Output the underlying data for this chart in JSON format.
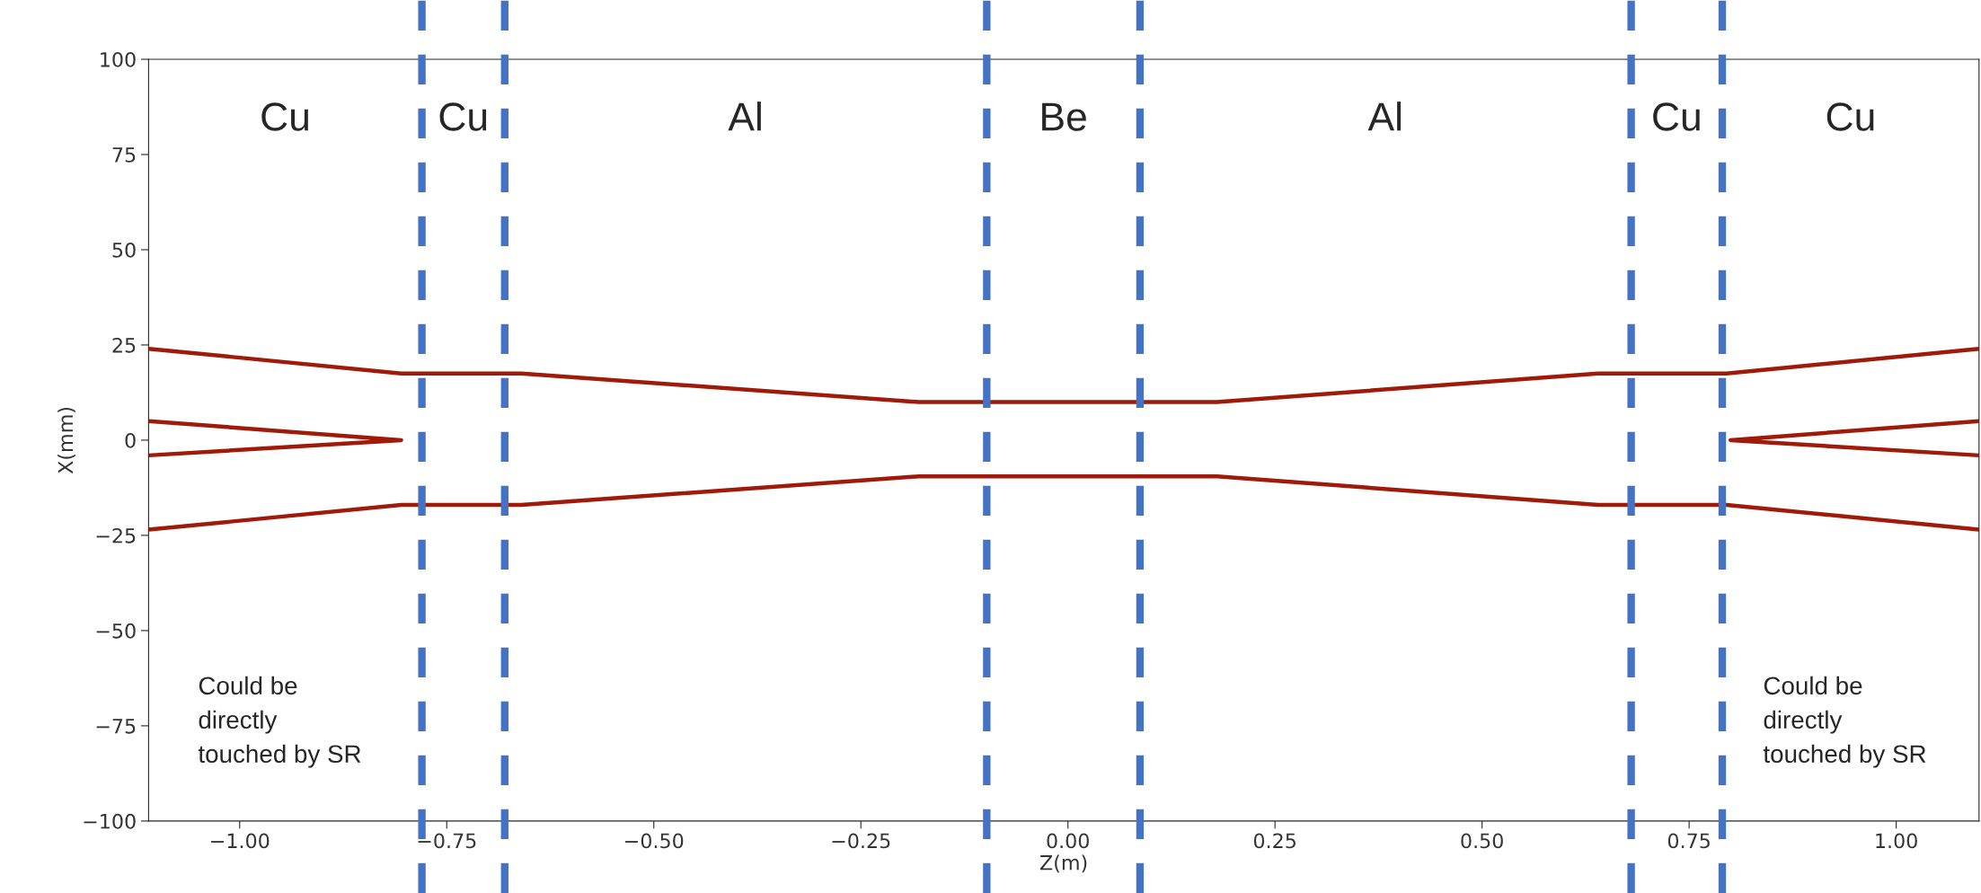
{
  "chart_data": {
    "type": "line",
    "xlabel": "Z(m)",
    "ylabel": "X(mm)",
    "xlim": [
      -1.11,
      1.1
    ],
    "ylim": [
      -100,
      100
    ],
    "xticks": [
      {
        "value": -1.0,
        "label": "−1.00"
      },
      {
        "value": -0.75,
        "label": "−0.75"
      },
      {
        "value": -0.5,
        "label": "−0.50"
      },
      {
        "value": -0.25,
        "label": "−0.25"
      },
      {
        "value": 0,
        "label": "0.00"
      },
      {
        "value": 0.25,
        "label": "0.25"
      },
      {
        "value": 0.5,
        "label": "0.50"
      },
      {
        "value": 0.75,
        "label": "0.75"
      },
      {
        "value": 1.0,
        "label": "1.00"
      }
    ],
    "yticks": [
      {
        "value": -100,
        "label": "−100"
      },
      {
        "value": -75,
        "label": "−75"
      },
      {
        "value": -50,
        "label": "−50"
      },
      {
        "value": -25,
        "label": "−25"
      },
      0,
      25,
      50,
      75,
      100
    ],
    "grid": false,
    "legend": false,
    "marker": "none",
    "line_style": "solid",
    "series": [
      {
        "color": "#a01a0a",
        "x": [
          -1.11,
          -0.805,
          -0.66,
          -0.18,
          0.18,
          0.64,
          0.795,
          1.1
        ],
        "values": [
          24,
          17.5,
          17.5,
          10,
          10,
          17.5,
          17.5,
          24
        ]
      },
      {
        "color": "#a01a0a",
        "x": [
          -1.11,
          -0.805,
          -0.66,
          -0.18,
          0.18,
          0.64,
          0.795,
          1.1
        ],
        "values": [
          -23.5,
          -17,
          -17,
          -9.5,
          -9.5,
          -17,
          -17,
          -23.5
        ]
      },
      {
        "color": "#a01a0a",
        "x": [
          -1.11,
          -0.805,
          -1.11
        ],
        "values": [
          5,
          0,
          -4
        ]
      },
      {
        "color": "#a01a0a",
        "x": [
          1.1,
          0.8,
          1.1
        ],
        "values": [
          5,
          0,
          -4
        ]
      }
    ],
    "ref_lines": [
      {
        "axis": "x",
        "value": -0.78,
        "color": "#4472c4",
        "line_style": "dashed"
      },
      {
        "axis": "x",
        "value": -0.68,
        "color": "#4472c4",
        "line_style": "dashed"
      },
      {
        "axis": "x",
        "value": -0.098,
        "color": "#4472c4",
        "line_style": "dashed"
      },
      {
        "axis": "x",
        "value": 0.087,
        "color": "#4472c4",
        "line_style": "dashed"
      },
      {
        "axis": "x",
        "value": 0.68,
        "color": "#4472c4",
        "line_style": "dashed"
      },
      {
        "axis": "x",
        "value": 0.79,
        "color": "#4472c4",
        "line_style": "dashed"
      }
    ],
    "annotations": [
      "Cu",
      "Cu",
      "Al",
      "Be",
      "Al",
      "Cu",
      "Cu",
      "Could be\ndirectly\ntouched by SR",
      "Could be\ndirectly\ntouched by SR"
    ]
  }
}
